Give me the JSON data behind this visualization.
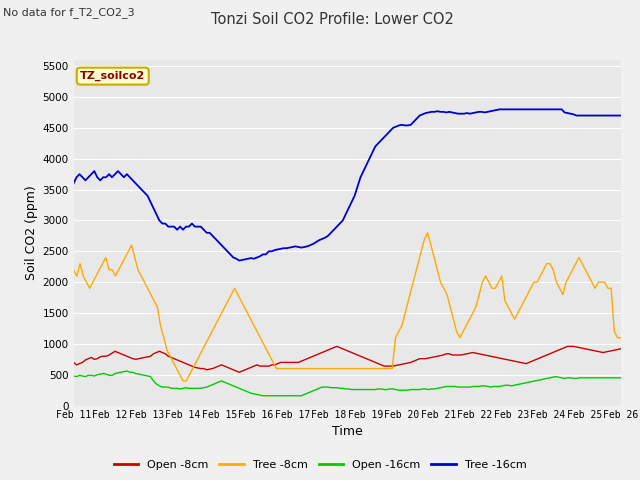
{
  "title": "Tonzi Soil CO2 Profile: Lower CO2",
  "no_data_label": "No data for f_T2_CO2_3",
  "xlabel": "Time",
  "ylabel": "Soil CO2 (ppm)",
  "ylim": [
    0,
    5600
  ],
  "yticks": [
    0,
    500,
    1000,
    1500,
    2000,
    2500,
    3000,
    3500,
    4000,
    4500,
    5000,
    5500
  ],
  "x_labels": [
    "Feb 11",
    "Feb 12",
    "Feb 13",
    "Feb 14",
    "Feb 15",
    "Feb 16",
    "Feb 17",
    "Feb 18",
    "Feb 19",
    "Feb 20",
    "Feb 21",
    "Feb 22",
    "Feb 23",
    "Feb 24",
    "Feb 25",
    "Feb 26"
  ],
  "legend_label": "TZ_soilco2",
  "legend_entries": [
    "Open -8cm",
    "Tree -8cm",
    "Open -16cm",
    "Tree -16cm"
  ],
  "legend_colors": [
    "#cc0000",
    "#ffaa00",
    "#00cc00",
    "#0000cc"
  ],
  "fig_bg": "#f0f0f0",
  "plot_bg": "#e8e8e8",
  "grid_color": "#ffffff",
  "line_colors": {
    "open_8": "#cc0000",
    "tree_8": "#ffaa00",
    "open_16": "#00cc00",
    "tree_16": "#0000cc"
  },
  "open_8cm": [
    700,
    660,
    680,
    700,
    740,
    760,
    780,
    750,
    760,
    790,
    800,
    800,
    820,
    850,
    880,
    860,
    840,
    820,
    800,
    780,
    760,
    750,
    760,
    770,
    780,
    790,
    800,
    840,
    860,
    880,
    860,
    840,
    800,
    780,
    760,
    740,
    720,
    700,
    680,
    660,
    640,
    620,
    610,
    600,
    600,
    580,
    590,
    600,
    620,
    640,
    660,
    640,
    620,
    600,
    580,
    560,
    540,
    560,
    580,
    600,
    620,
    640,
    660,
    640,
    640,
    640,
    640,
    660,
    660,
    680,
    700,
    700,
    700,
    700,
    700,
    700,
    700,
    720,
    740,
    760,
    780,
    800,
    820,
    840,
    860,
    880,
    900,
    920,
    940,
    960,
    940,
    920,
    900,
    880,
    860,
    840,
    820,
    800,
    780,
    760,
    740,
    720,
    700,
    680,
    660,
    640,
    640,
    640,
    640,
    650,
    660,
    670,
    680,
    690,
    700,
    720,
    740,
    760,
    760,
    760,
    770,
    780,
    790,
    800,
    810,
    820,
    840,
    840,
    820,
    820,
    820,
    820,
    830,
    840,
    850,
    860,
    850,
    840,
    830,
    820,
    810,
    800,
    790,
    780,
    770,
    760,
    750,
    740,
    730,
    720,
    710,
    700,
    690,
    680,
    700,
    720,
    740,
    760,
    780,
    800,
    820,
    840,
    860,
    880,
    900,
    920,
    940,
    960,
    960,
    960,
    950,
    940,
    930,
    920,
    910,
    900,
    890,
    880,
    870,
    860,
    870,
    880,
    890,
    900,
    910,
    920
  ],
  "tree_8cm": [
    2200,
    2100,
    2300,
    2100,
    2000,
    1900,
    2000,
    2100,
    2200,
    2300,
    2400,
    2200,
    2200,
    2100,
    2200,
    2300,
    2400,
    2500,
    2600,
    2400,
    2200,
    2100,
    2000,
    1900,
    1800,
    1700,
    1600,
    1300,
    1100,
    900,
    800,
    700,
    600,
    500,
    400,
    400,
    500,
    600,
    700,
    800,
    900,
    1000,
    1100,
    1200,
    1300,
    1400,
    1500,
    1600,
    1700,
    1800,
    1900,
    1800,
    1700,
    1600,
    1500,
    1400,
    1300,
    1200,
    1100,
    1000,
    900,
    800,
    700,
    600,
    600,
    600,
    600,
    600,
    600,
    600,
    600,
    600,
    600,
    600,
    600,
    600,
    600,
    600,
    600,
    600,
    600,
    600,
    600,
    600,
    600,
    600,
    600,
    600,
    600,
    600,
    600,
    600,
    600,
    600,
    600,
    600,
    600,
    600,
    600,
    600,
    1100,
    1200,
    1300,
    1500,
    1700,
    1900,
    2100,
    2300,
    2500,
    2700,
    2800,
    2600,
    2400,
    2200,
    2000,
    1900,
    1800,
    1600,
    1400,
    1200,
    1100,
    1200,
    1300,
    1400,
    1500,
    1600,
    1800,
    2000,
    2100,
    2000,
    1900,
    1900,
    2000,
    2100,
    1700,
    1600,
    1500,
    1400,
    1500,
    1600,
    1700,
    1800,
    1900,
    2000,
    2000,
    2100,
    2200,
    2300,
    2300,
    2200,
    2000,
    1900,
    1800,
    2000,
    2100,
    2200,
    2300,
    2400,
    2300,
    2200,
    2100,
    2000,
    1900,
    2000,
    2000,
    2000,
    1900,
    1900,
    1200,
    1100,
    1100
  ],
  "open_16cm": [
    480,
    470,
    490,
    480,
    470,
    490,
    490,
    480,
    500,
    510,
    520,
    510,
    490,
    490,
    520,
    530,
    540,
    550,
    560,
    540,
    540,
    520,
    510,
    500,
    490,
    480,
    470,
    400,
    350,
    320,
    300,
    300,
    300,
    280,
    280,
    280,
    270,
    280,
    290,
    280,
    280,
    280,
    280,
    280,
    290,
    300,
    320,
    340,
    360,
    380,
    400,
    380,
    360,
    340,
    320,
    300,
    280,
    260,
    240,
    220,
    200,
    190,
    180,
    170,
    160,
    160,
    160,
    160,
    160,
    160,
    160,
    160,
    160,
    160,
    160,
    160,
    160,
    160,
    180,
    200,
    220,
    240,
    260,
    280,
    300,
    300,
    300,
    290,
    290,
    290,
    280,
    280,
    270,
    270,
    260,
    260,
    260,
    260,
    260,
    260,
    260,
    260,
    260,
    270,
    270,
    260,
    260,
    270,
    270,
    260,
    250,
    250,
    250,
    250,
    260,
    260,
    260,
    260,
    270,
    270,
    260,
    270,
    270,
    280,
    290,
    300,
    310,
    310,
    310,
    310,
    300,
    300,
    300,
    300,
    300,
    310,
    310,
    310,
    320,
    320,
    310,
    300,
    310,
    310,
    310,
    320,
    330,
    330,
    320,
    330,
    340,
    350,
    360,
    370,
    380,
    390,
    400,
    410,
    420,
    430,
    440,
    450,
    460,
    470,
    460,
    450,
    440,
    450,
    450,
    440,
    440,
    450,
    450,
    450,
    450,
    450,
    450,
    450,
    450,
    450,
    450,
    450,
    450,
    450,
    450,
    450
  ],
  "tree_16cm": [
    3600,
    3700,
    3750,
    3700,
    3650,
    3700,
    3750,
    3800,
    3700,
    3650,
    3700,
    3700,
    3750,
    3700,
    3750,
    3800,
    3750,
    3700,
    3750,
    3700,
    3650,
    3600,
    3550,
    3500,
    3450,
    3400,
    3300,
    3200,
    3100,
    3000,
    2950,
    2950,
    2900,
    2900,
    2900,
    2850,
    2900,
    2850,
    2900,
    2900,
    2950,
    2900,
    2900,
    2900,
    2850,
    2800,
    2800,
    2750,
    2700,
    2650,
    2600,
    2550,
    2500,
    2450,
    2400,
    2380,
    2350,
    2360,
    2370,
    2380,
    2390,
    2380,
    2400,
    2420,
    2450,
    2450,
    2500,
    2500,
    2520,
    2530,
    2540,
    2550,
    2550,
    2560,
    2570,
    2580,
    2570,
    2560,
    2570,
    2580,
    2600,
    2620,
    2650,
    2680,
    2700,
    2720,
    2750,
    2800,
    2850,
    2900,
    2950,
    3000,
    3100,
    3200,
    3300,
    3400,
    3550,
    3700,
    3800,
    3900,
    4000,
    4100,
    4200,
    4250,
    4300,
    4350,
    4400,
    4450,
    4500,
    4520,
    4540,
    4550,
    4540,
    4540,
    4550,
    4600,
    4650,
    4700,
    4720,
    4740,
    4750,
    4760,
    4760,
    4770,
    4760,
    4760,
    4750,
    4760,
    4750,
    4740,
    4730,
    4730,
    4730,
    4740,
    4730,
    4740,
    4750,
    4760,
    4760,
    4750,
    4760,
    4770,
    4780,
    4790,
    4800,
    4800,
    4800,
    4800,
    4800,
    4800,
    4800,
    4800,
    4800,
    4800,
    4800,
    4800,
    4800,
    4800,
    4800,
    4800,
    4800,
    4800,
    4800,
    4800,
    4800,
    4800,
    4750,
    4740,
    4730,
    4720,
    4700,
    4700,
    4700,
    4700,
    4700,
    4700,
    4700,
    4700,
    4700,
    4700,
    4700,
    4700,
    4700,
    4700,
    4700,
    4700
  ]
}
